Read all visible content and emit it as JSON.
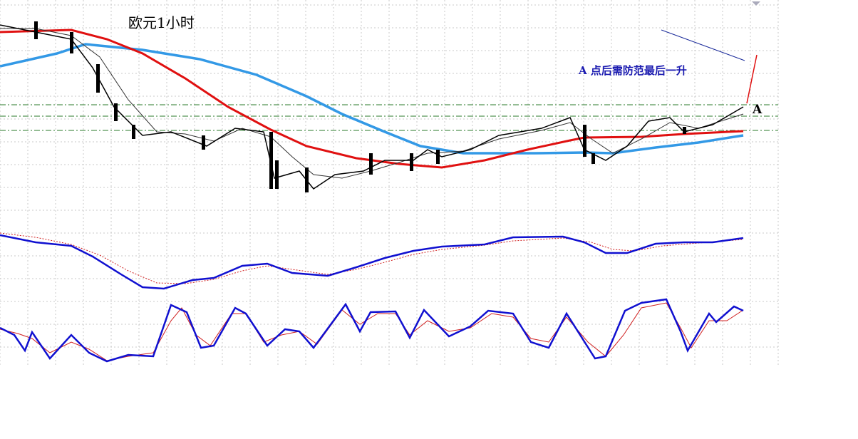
{
  "title": "欧元1小时",
  "annotations": [
    "A 点后需防范最后一升",
    "A"
  ]
}
